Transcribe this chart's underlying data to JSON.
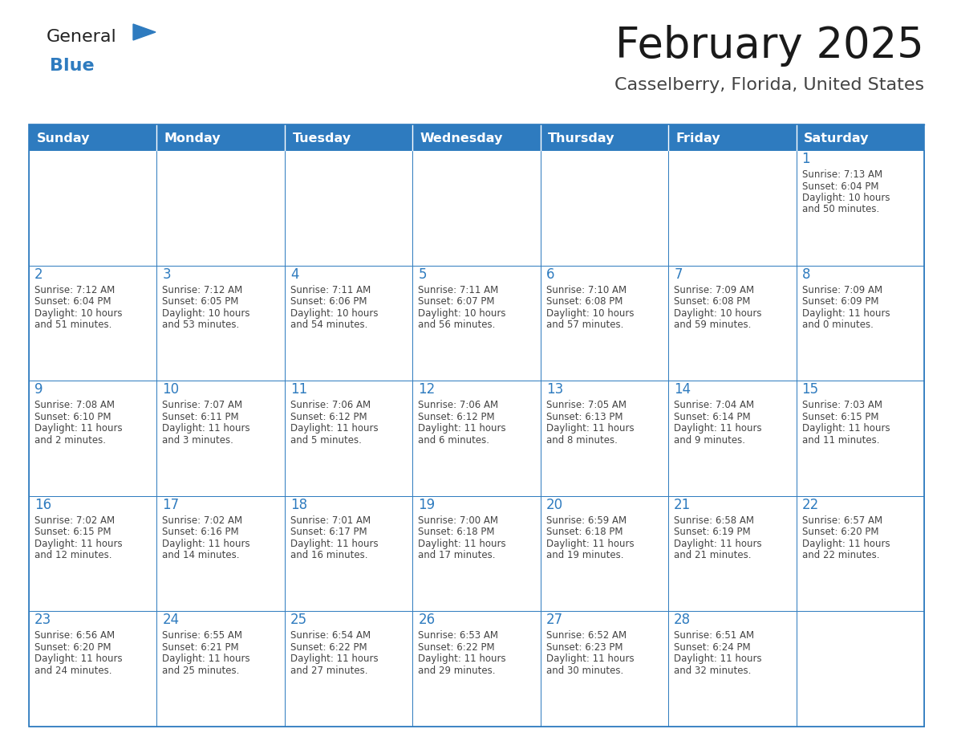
{
  "title": "February 2025",
  "subtitle": "Casselberry, Florida, United States",
  "days_of_week": [
    "Sunday",
    "Monday",
    "Tuesday",
    "Wednesday",
    "Thursday",
    "Friday",
    "Saturday"
  ],
  "header_color": "#2E7BBF",
  "header_text_color": "#FFFFFF",
  "cell_bg_color": "#FFFFFF",
  "cell_border_color": "#2E7BBF",
  "day_number_color": "#2E7BBF",
  "cell_text_color": "#444444",
  "title_color": "#1a1a1a",
  "subtitle_color": "#444444",
  "logo_general_color": "#222222",
  "logo_blue_color": "#2E7BBF",
  "background_color": "#FFFFFF",
  "calendar_data": [
    [
      null,
      null,
      null,
      null,
      null,
      null,
      {
        "day": 1,
        "sunrise": "7:13 AM",
        "sunset": "6:04 PM",
        "daylight": "10 hours\nand 50 minutes."
      }
    ],
    [
      {
        "day": 2,
        "sunrise": "7:12 AM",
        "sunset": "6:04 PM",
        "daylight": "10 hours\nand 51 minutes."
      },
      {
        "day": 3,
        "sunrise": "7:12 AM",
        "sunset": "6:05 PM",
        "daylight": "10 hours\nand 53 minutes."
      },
      {
        "day": 4,
        "sunrise": "7:11 AM",
        "sunset": "6:06 PM",
        "daylight": "10 hours\nand 54 minutes."
      },
      {
        "day": 5,
        "sunrise": "7:11 AM",
        "sunset": "6:07 PM",
        "daylight": "10 hours\nand 56 minutes."
      },
      {
        "day": 6,
        "sunrise": "7:10 AM",
        "sunset": "6:08 PM",
        "daylight": "10 hours\nand 57 minutes."
      },
      {
        "day": 7,
        "sunrise": "7:09 AM",
        "sunset": "6:08 PM",
        "daylight": "10 hours\nand 59 minutes."
      },
      {
        "day": 8,
        "sunrise": "7:09 AM",
        "sunset": "6:09 PM",
        "daylight": "11 hours\nand 0 minutes."
      }
    ],
    [
      {
        "day": 9,
        "sunrise": "7:08 AM",
        "sunset": "6:10 PM",
        "daylight": "11 hours\nand 2 minutes."
      },
      {
        "day": 10,
        "sunrise": "7:07 AM",
        "sunset": "6:11 PM",
        "daylight": "11 hours\nand 3 minutes."
      },
      {
        "day": 11,
        "sunrise": "7:06 AM",
        "sunset": "6:12 PM",
        "daylight": "11 hours\nand 5 minutes."
      },
      {
        "day": 12,
        "sunrise": "7:06 AM",
        "sunset": "6:12 PM",
        "daylight": "11 hours\nand 6 minutes."
      },
      {
        "day": 13,
        "sunrise": "7:05 AM",
        "sunset": "6:13 PM",
        "daylight": "11 hours\nand 8 minutes."
      },
      {
        "day": 14,
        "sunrise": "7:04 AM",
        "sunset": "6:14 PM",
        "daylight": "11 hours\nand 9 minutes."
      },
      {
        "day": 15,
        "sunrise": "7:03 AM",
        "sunset": "6:15 PM",
        "daylight": "11 hours\nand 11 minutes."
      }
    ],
    [
      {
        "day": 16,
        "sunrise": "7:02 AM",
        "sunset": "6:15 PM",
        "daylight": "11 hours\nand 12 minutes."
      },
      {
        "day": 17,
        "sunrise": "7:02 AM",
        "sunset": "6:16 PM",
        "daylight": "11 hours\nand 14 minutes."
      },
      {
        "day": 18,
        "sunrise": "7:01 AM",
        "sunset": "6:17 PM",
        "daylight": "11 hours\nand 16 minutes."
      },
      {
        "day": 19,
        "sunrise": "7:00 AM",
        "sunset": "6:18 PM",
        "daylight": "11 hours\nand 17 minutes."
      },
      {
        "day": 20,
        "sunrise": "6:59 AM",
        "sunset": "6:18 PM",
        "daylight": "11 hours\nand 19 minutes."
      },
      {
        "day": 21,
        "sunrise": "6:58 AM",
        "sunset": "6:19 PM",
        "daylight": "11 hours\nand 21 minutes."
      },
      {
        "day": 22,
        "sunrise": "6:57 AM",
        "sunset": "6:20 PM",
        "daylight": "11 hours\nand 22 minutes."
      }
    ],
    [
      {
        "day": 23,
        "sunrise": "6:56 AM",
        "sunset": "6:20 PM",
        "daylight": "11 hours\nand 24 minutes."
      },
      {
        "day": 24,
        "sunrise": "6:55 AM",
        "sunset": "6:21 PM",
        "daylight": "11 hours\nand 25 minutes."
      },
      {
        "day": 25,
        "sunrise": "6:54 AM",
        "sunset": "6:22 PM",
        "daylight": "11 hours\nand 27 minutes."
      },
      {
        "day": 26,
        "sunrise": "6:53 AM",
        "sunset": "6:22 PM",
        "daylight": "11 hours\nand 29 minutes."
      },
      {
        "day": 27,
        "sunrise": "6:52 AM",
        "sunset": "6:23 PM",
        "daylight": "11 hours\nand 30 minutes."
      },
      {
        "day": 28,
        "sunrise": "6:51 AM",
        "sunset": "6:24 PM",
        "daylight": "11 hours\nand 32 minutes."
      },
      null
    ]
  ]
}
